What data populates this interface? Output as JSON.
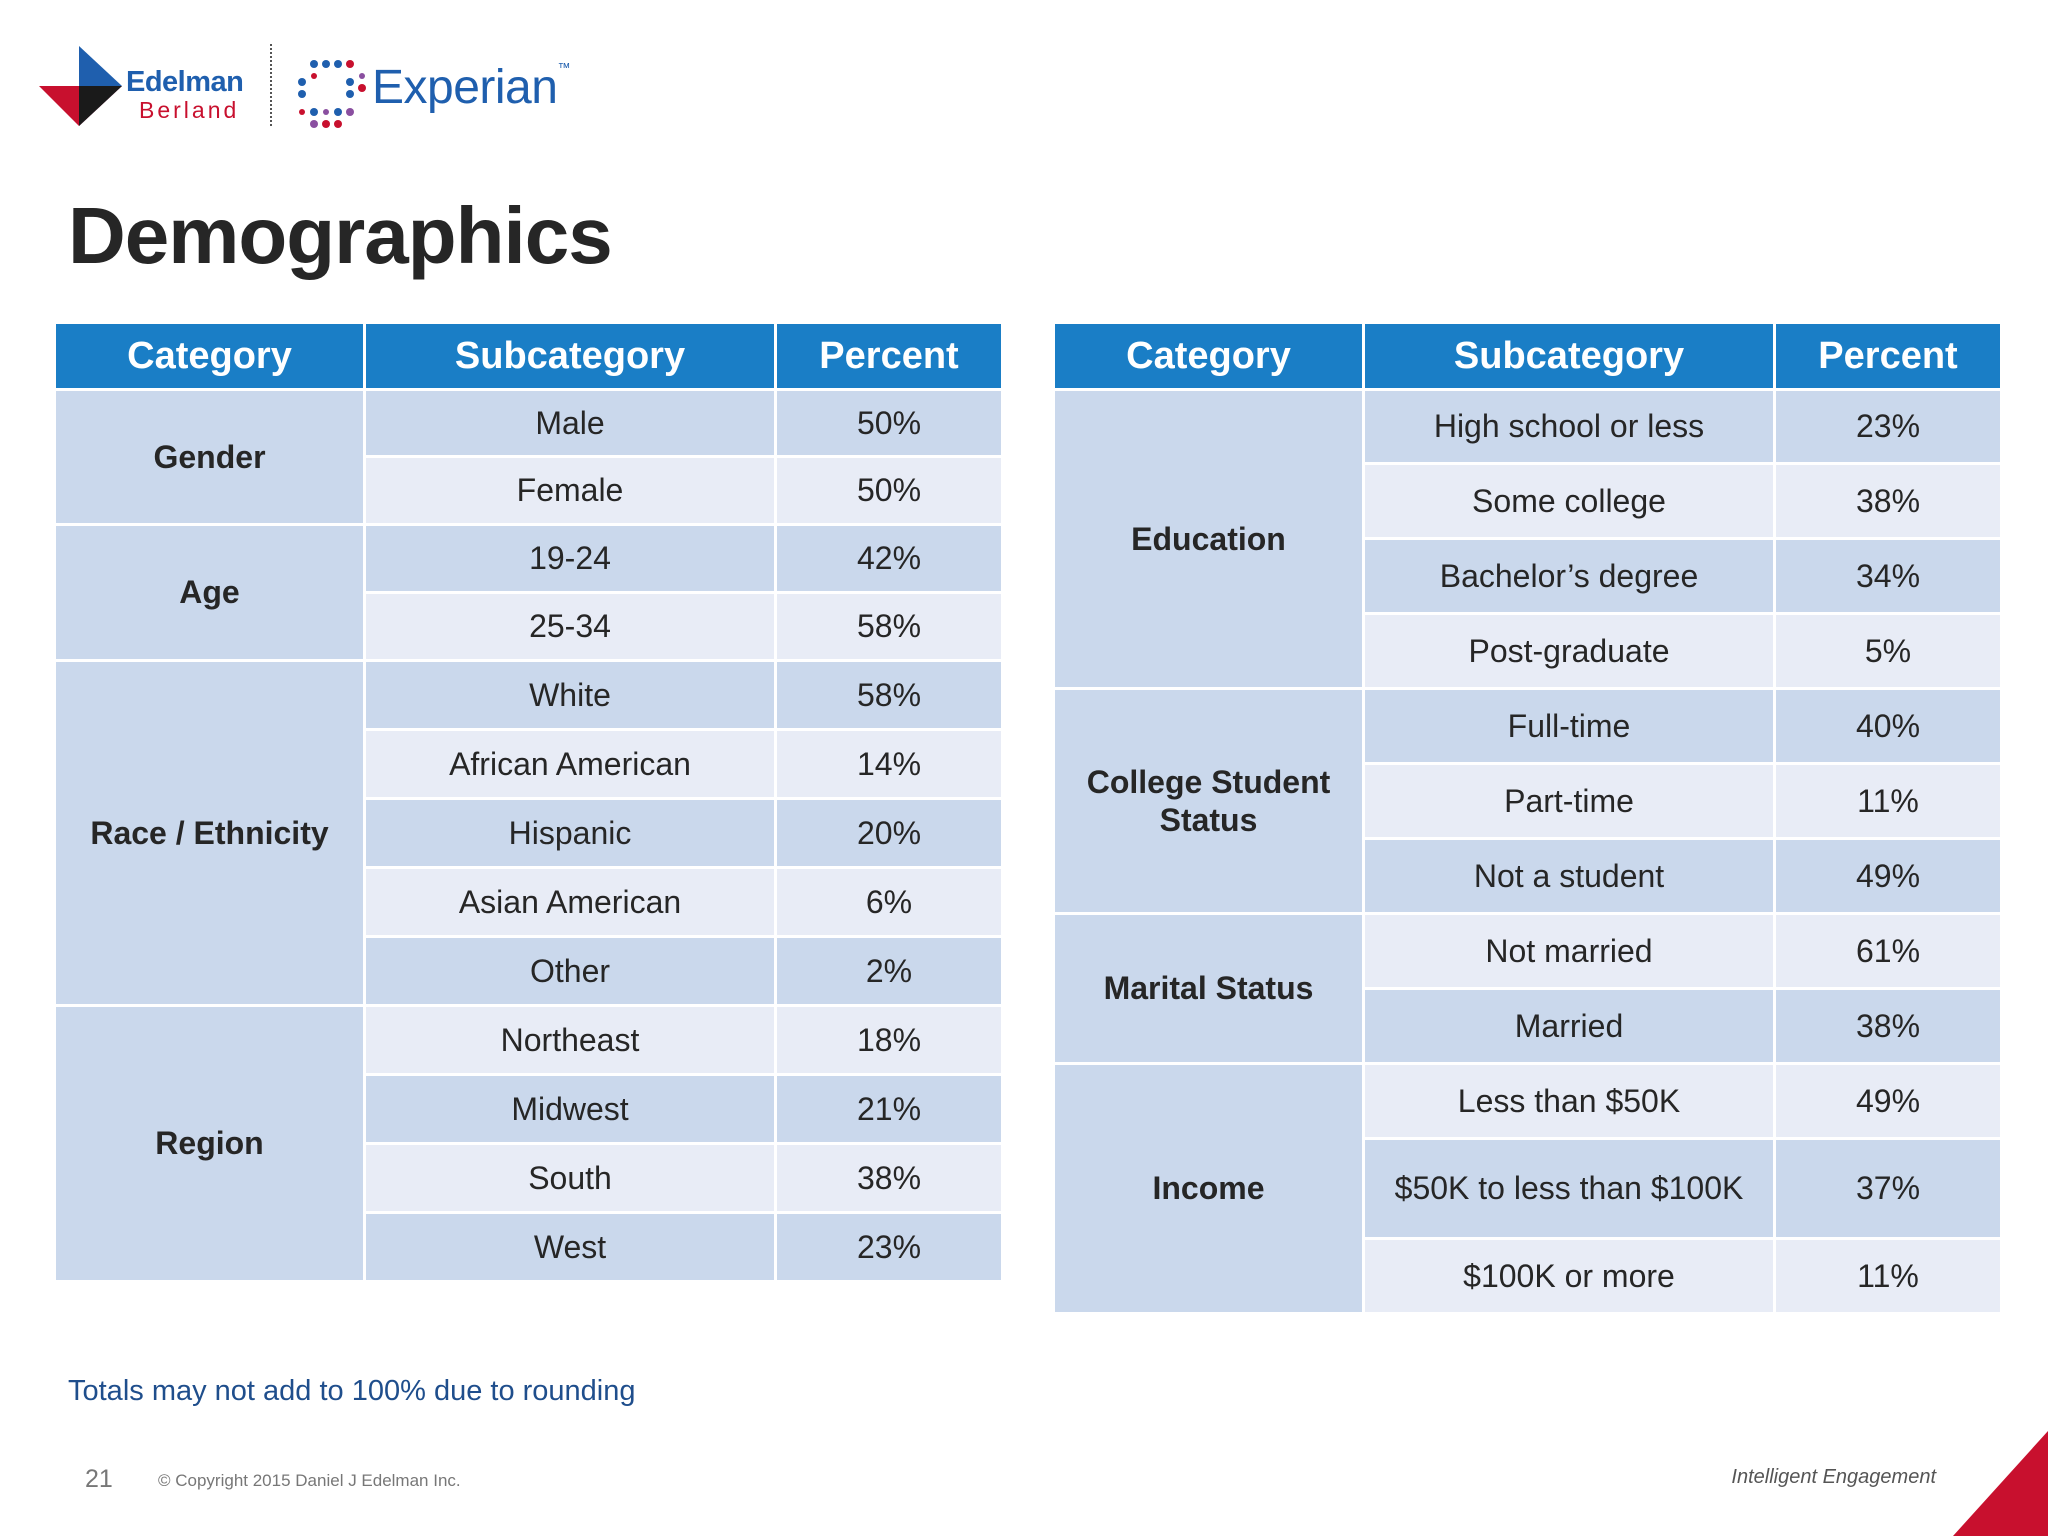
{
  "header": {
    "edelman_logo_line1": "Edelman",
    "edelman_logo_line2": "Berland",
    "experian_logo": "Experian",
    "experian_tm": "™"
  },
  "page": {
    "title": "Demographics",
    "footnote": "Totals may not add to 100% due to rounding",
    "page_number": "21",
    "copyright": "© Copyright 2015 Daniel J Edelman Inc.",
    "tagline": "Intelligent Engagement"
  },
  "colors": {
    "header_blue": "#1a7ec6",
    "row_dark": "#cad8ec",
    "row_light": "#e8ecf6",
    "accent_red": "#c8102e"
  },
  "table_left": {
    "headers": [
      "Category",
      "Subcategory",
      "Percent"
    ],
    "rows": [
      {
        "category": "Gender",
        "subcategory": "Male",
        "percent": "50%"
      },
      {
        "subcategory": "Female",
        "percent": "50%"
      },
      {
        "category": "Age",
        "subcategory": "19-24",
        "percent": "42%"
      },
      {
        "subcategory": "25-34",
        "percent": "58%"
      },
      {
        "category": "Race / Ethnicity",
        "subcategory": "White",
        "percent": "58%"
      },
      {
        "subcategory": "African American",
        "percent": "14%"
      },
      {
        "subcategory": "Hispanic",
        "percent": "20%"
      },
      {
        "subcategory": "Asian American",
        "percent": "6%"
      },
      {
        "subcategory": "Other",
        "percent": "2%"
      },
      {
        "category": "Region",
        "subcategory": "Northeast",
        "percent": "18%"
      },
      {
        "subcategory": "Midwest",
        "percent": "21%"
      },
      {
        "subcategory": "South",
        "percent": "38%"
      },
      {
        "subcategory": "West",
        "percent": "23%"
      }
    ]
  },
  "table_right": {
    "headers": [
      "Category",
      "Subcategory",
      "Percent"
    ],
    "rows": [
      {
        "category": "Education",
        "subcategory": "High school or less",
        "percent": "23%"
      },
      {
        "subcategory": "Some college",
        "percent": "38%"
      },
      {
        "subcategory": "Bachelor’s degree",
        "percent": "34%"
      },
      {
        "subcategory": "Post-graduate",
        "percent": "5%"
      },
      {
        "category": "College Student Status",
        "subcategory": "Full-time",
        "percent": "40%"
      },
      {
        "subcategory": "Part-time",
        "percent": "11%"
      },
      {
        "subcategory": "Not a student",
        "percent": "49%"
      },
      {
        "category": "Marital Status",
        "subcategory": "Not married",
        "percent": "61%"
      },
      {
        "subcategory": "Married",
        "percent": "38%"
      },
      {
        "category": "Income",
        "subcategory": "Less than $50K",
        "percent": "49%"
      },
      {
        "subcategory": "$50K to less than $100K",
        "percent": "37%"
      },
      {
        "subcategory": "$100K or more",
        "percent": "11%"
      }
    ]
  }
}
